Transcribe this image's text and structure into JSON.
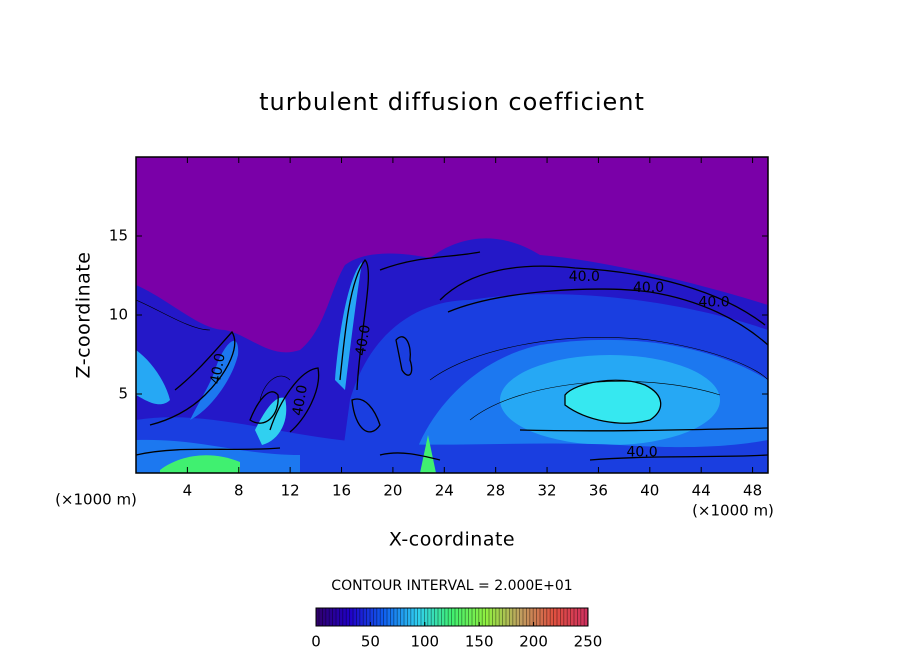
{
  "chart_data": {
    "type": "contour",
    "title": "turbulent diffusion coefficient",
    "x_label": "X-coordinate",
    "y_label": "Z-coordinate",
    "x_unit": "(×1000 m)",
    "y_unit": "(×1000 m)",
    "xlim": [
      0,
      49.2
    ],
    "ylim": [
      0,
      20
    ],
    "xticks": [
      4,
      8,
      12,
      16,
      20,
      24,
      28,
      32,
      36,
      40,
      44,
      48
    ],
    "yticks": [
      5,
      10,
      15
    ],
    "contour_interval": "CONTOUR INTERVAL = 2.000E+01",
    "contour_labels": [
      {
        "value": 40,
        "label": "40.0",
        "x": 34.9,
        "y": 12.4
      },
      {
        "value": 40,
        "label": "40.0",
        "x": 39.9,
        "y": 11.7
      },
      {
        "value": 40,
        "label": "40.0",
        "x": 45.0,
        "y": 10.8
      },
      {
        "value": 40,
        "label": "40.0",
        "x": 39.4,
        "y": 1.3
      },
      {
        "value": 40,
        "label": "40.0",
        "x": 17.7,
        "y": 8.4
      },
      {
        "value": 40,
        "label": "40.0",
        "x": 6.4,
        "y": 6.6
      },
      {
        "value": 40,
        "label": "40.0",
        "x": 12.8,
        "y": 4.6
      }
    ],
    "colorbar": {
      "lim": [
        0,
        250
      ],
      "ticks": [
        0,
        50,
        100,
        150,
        200,
        250
      ],
      "colors": [
        "#30006a",
        "#2000c8",
        "#1060f0",
        "#30d0f0",
        "#40f070",
        "#90f040",
        "#c0a060",
        "#e05040",
        "#d03060"
      ]
    }
  }
}
